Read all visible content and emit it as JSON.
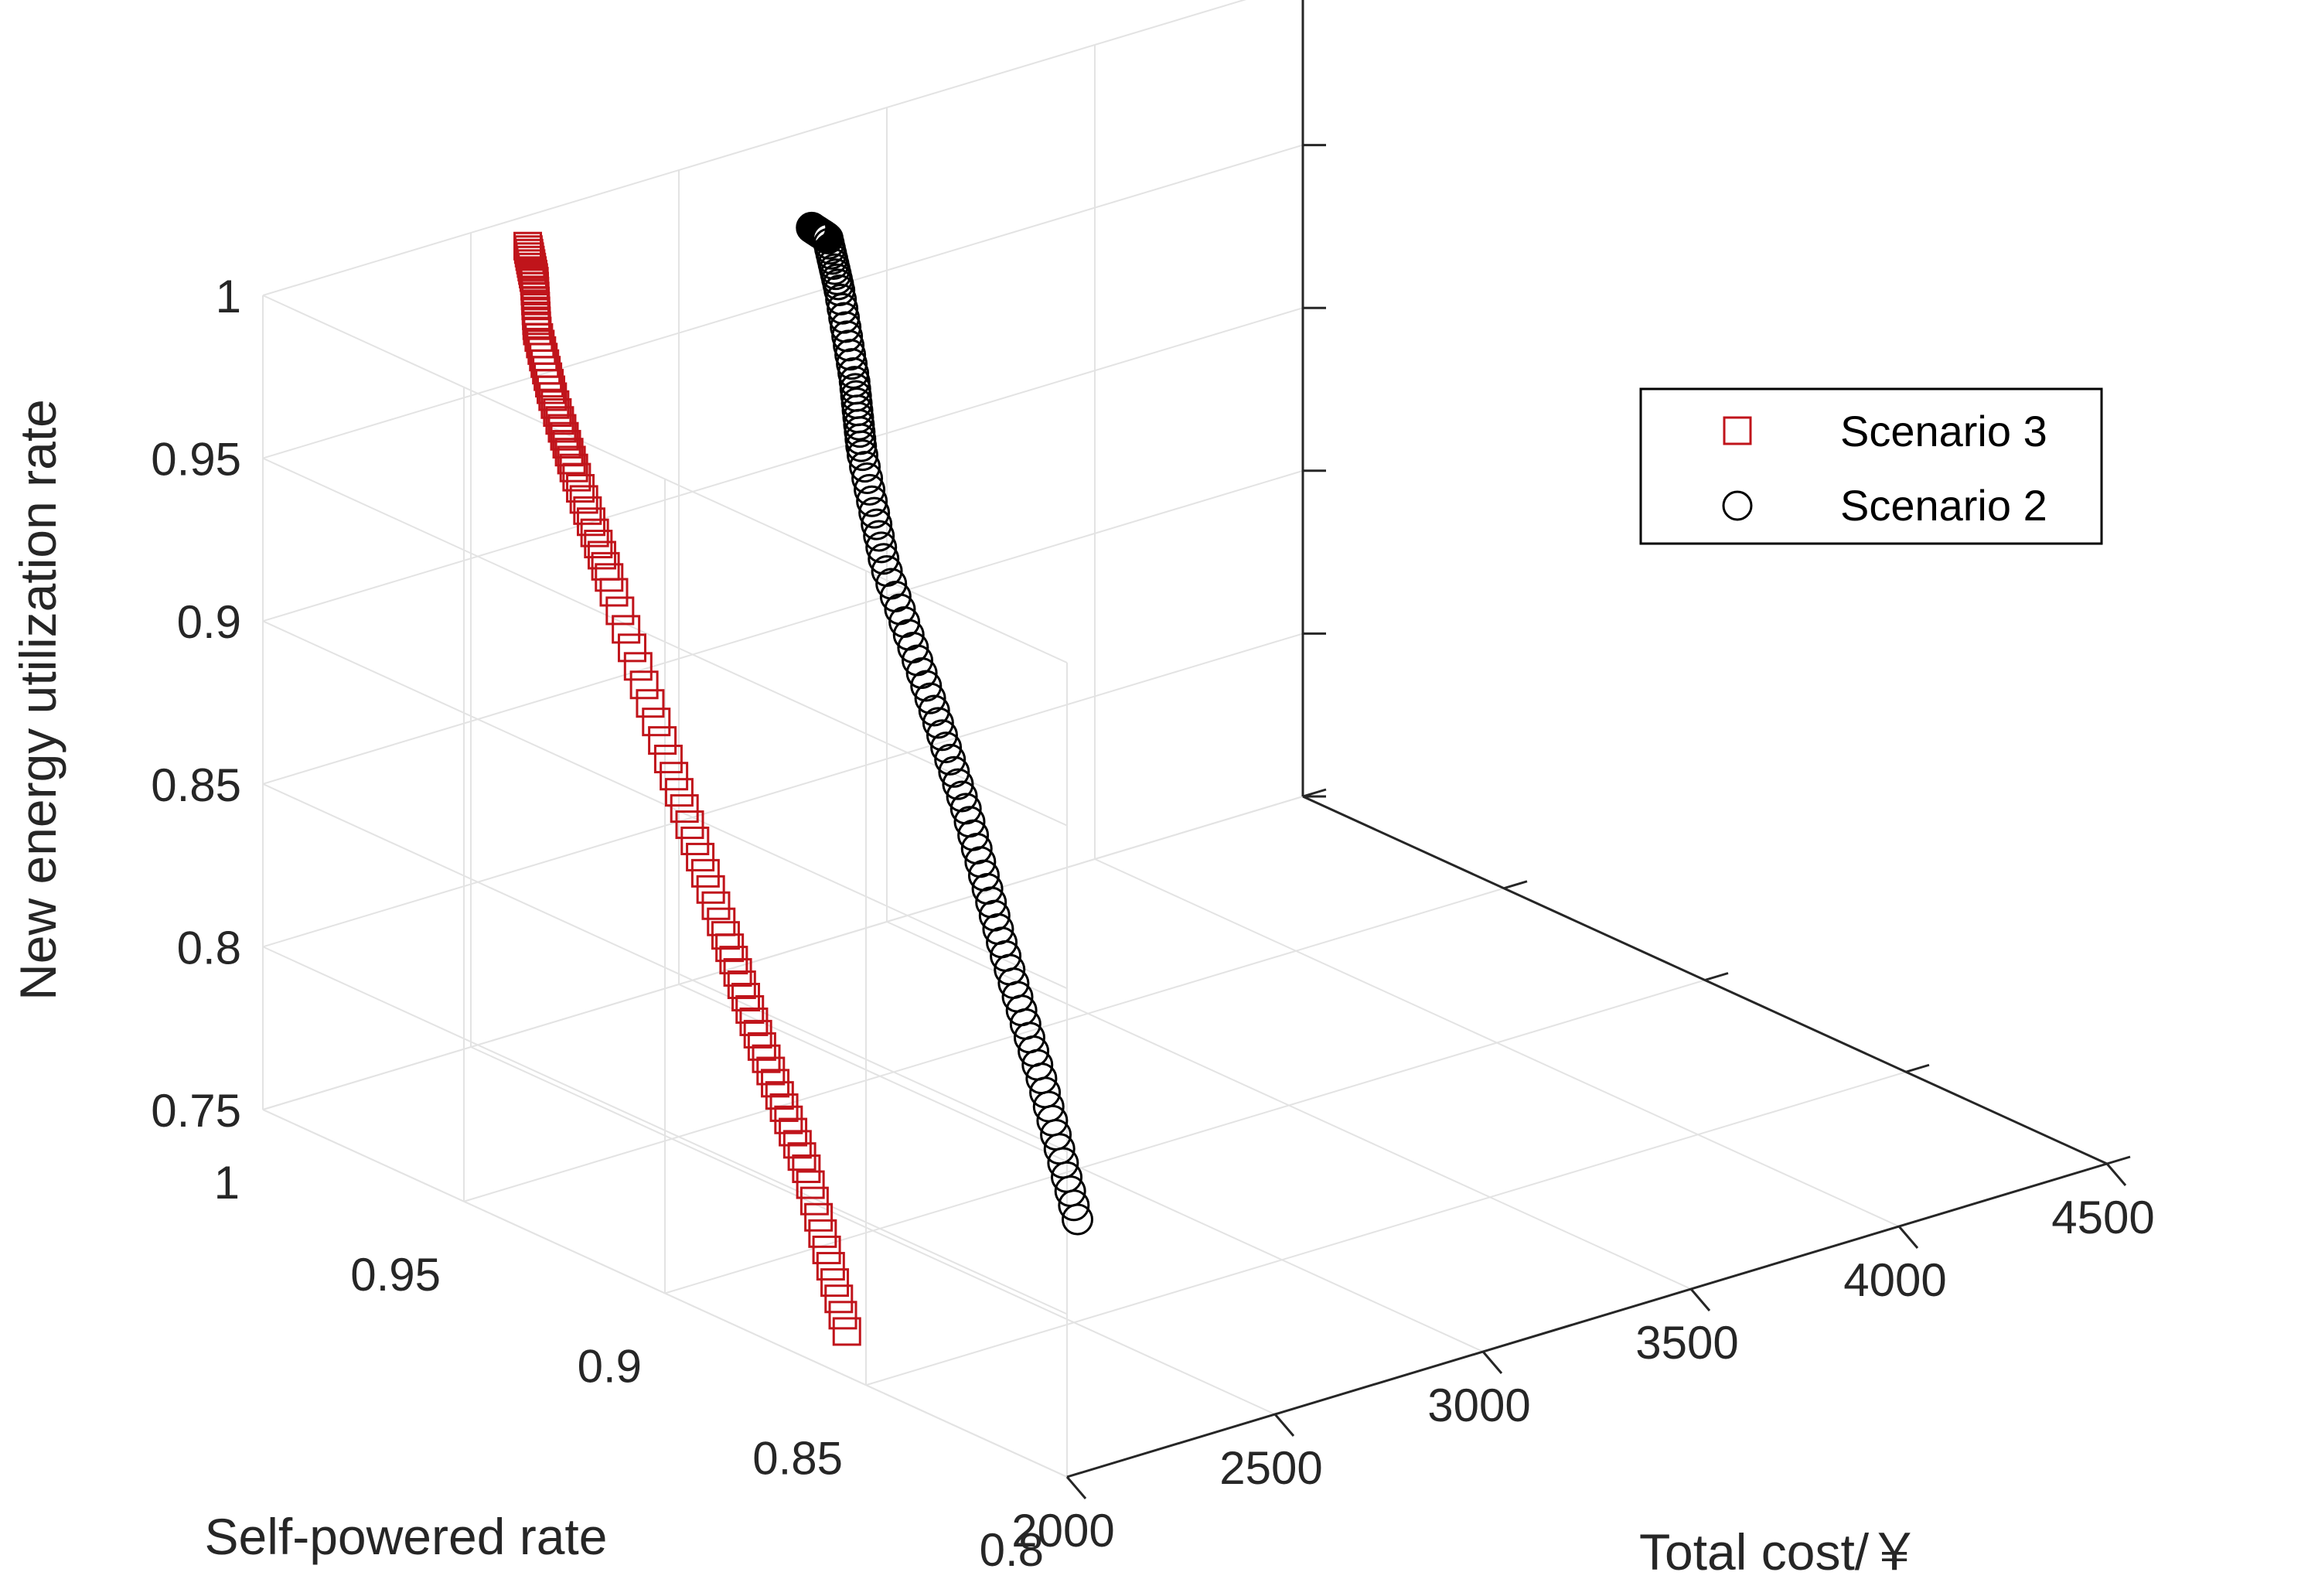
{
  "chart_data": {
    "type": "scatter3d",
    "title": "",
    "axes": {
      "x": {
        "label": "Total cost/￥",
        "range": [
          2000,
          4500
        ],
        "ticks": [
          2000,
          2500,
          3000,
          3500,
          4000,
          4500
        ],
        "tick_labels": [
          "2000",
          "2500",
          "3000",
          "3500",
          "4000",
          "4500"
        ]
      },
      "y": {
        "label": "Self-powered rate",
        "range": [
          0.8,
          1.0
        ],
        "ticks": [
          0.8,
          0.85,
          0.9,
          0.95,
          1.0
        ],
        "tick_labels": [
          "0.8",
          "0.85",
          "0.9",
          "0.95",
          "1"
        ]
      },
      "z": {
        "label": "New energy utilization rate",
        "range": [
          0.75,
          1.0
        ],
        "ticks": [
          0.75,
          0.8,
          0.85,
          0.9,
          0.95,
          1.0
        ],
        "tick_labels": [
          "0.75",
          "0.8",
          "0.85",
          "0.9",
          "0.95",
          "1"
        ]
      }
    },
    "grid": true,
    "legend": {
      "position": "upper-right",
      "entries": [
        {
          "label": "Scenario 3",
          "marker": "square",
          "color": "#c0141b"
        },
        {
          "label": "Scenario 2",
          "marker": "circle",
          "color": "#000000"
        }
      ]
    },
    "series": [
      {
        "name": "Scenario 3",
        "marker": "square",
        "color": "#c0141b",
        "trend": {
          "z": [
            0.757,
            0.8,
            0.83,
            0.86,
            0.9,
            0.945,
            0.97,
            0.985,
            0.995,
            1.0,
            1.0
          ],
          "x": [
            2070,
            2080,
            2090,
            2110,
            2130,
            2160,
            2200,
            2260,
            2340,
            2440,
            2540
          ],
          "y": [
            0.862,
            0.873,
            0.885,
            0.897,
            0.912,
            0.93,
            0.943,
            0.955,
            0.967,
            0.978,
            0.99
          ]
        },
        "n_points": 100
      },
      {
        "name": "Scenario 2",
        "marker": "circle",
        "color": "#000000",
        "trend": {
          "z": [
            0.786,
            0.82,
            0.85,
            0.88,
            0.905,
            0.93,
            0.955,
            0.97,
            0.99,
            1.0,
            1.0
          ],
          "x": [
            2460,
            2500,
            2560,
            2620,
            2690,
            2770,
            2840,
            2900,
            2960,
            3000,
            3010
          ],
          "y": [
            0.845,
            0.858,
            0.874,
            0.889,
            0.906,
            0.925,
            0.938,
            0.946,
            0.956,
            0.963,
            0.968
          ]
        },
        "n_points": 100
      }
    ]
  }
}
